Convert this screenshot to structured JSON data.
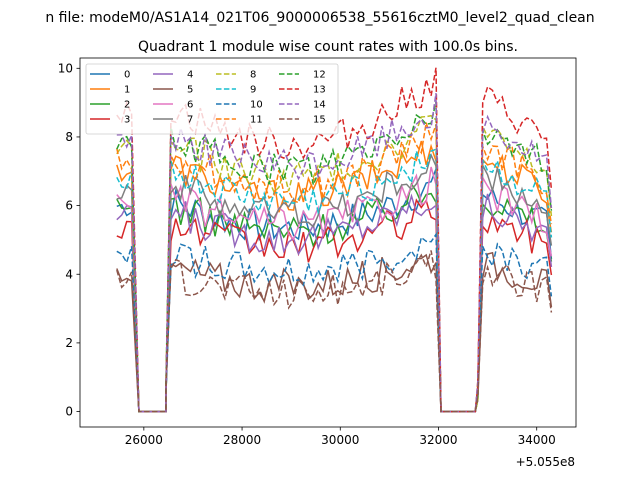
{
  "chart_data": {
    "type": "line",
    "suptitle": "n file: modeM0/AS1A14_021T06_9000006538_55616cztM0_level2_quad_clean",
    "title": "Quadrant 1 module wise count rates with 100.0s bins.",
    "xlabel": "",
    "ylabel": "",
    "x_offset_label": "+5.055e8",
    "xlim": [
      24700,
      34800
    ],
    "ylim": [
      -0.45,
      10.3
    ],
    "x_ticks": [
      26000,
      28000,
      30000,
      32000,
      34000
    ],
    "x_tick_labels": [
      "26000",
      "28000",
      "30000",
      "32000",
      "34000"
    ],
    "y_ticks": [
      0,
      2,
      4,
      6,
      8,
      10
    ],
    "y_tick_labels": [
      "0",
      "2",
      "4",
      "6",
      "8",
      "10"
    ],
    "legend_position": "upper-left",
    "legend_columns": 4,
    "series_levels": [
      {
        "name": "0",
        "color": "#1f77b4",
        "dash": "solid",
        "level": 5.7
      },
      {
        "name": "1",
        "color": "#ff7f0e",
        "dash": "solid",
        "level": 6.7
      },
      {
        "name": "2",
        "color": "#2ca02c",
        "dash": "solid",
        "level": 5.6
      },
      {
        "name": "3",
        "color": "#d62728",
        "dash": "solid",
        "level": 5.1
      },
      {
        "name": "4",
        "color": "#9467bd",
        "dash": "solid",
        "level": 5.4
      },
      {
        "name": "5",
        "color": "#8c564b",
        "dash": "solid",
        "level": 3.9
      },
      {
        "name": "6",
        "color": "#e377c2",
        "dash": "solid",
        "level": 5.8
      },
      {
        "name": "7",
        "color": "#7f7f7f",
        "dash": "solid",
        "level": 6.2
      },
      {
        "name": "8",
        "color": "#bcbd22",
        "dash": "dashed",
        "level": 7.3
      },
      {
        "name": "9",
        "color": "#17becf",
        "dash": "dashed",
        "level": 6.5
      },
      {
        "name": "10",
        "color": "#1f77b4",
        "dash": "dashed",
        "level": 4.3
      },
      {
        "name": "11",
        "color": "#ff7f0e",
        "dash": "dashed",
        "level": 7.0
      },
      {
        "name": "12",
        "color": "#2ca02c",
        "dash": "dashed",
        "level": 7.5
      },
      {
        "name": "13",
        "color": "#d62728",
        "dash": "dashed",
        "level": 8.3
      },
      {
        "name": "14",
        "color": "#9467bd",
        "dash": "dashed",
        "level": 7.6
      },
      {
        "name": "15",
        "color": "#8c564b",
        "dash": "dashed",
        "level": 3.7
      }
    ],
    "segments": [
      {
        "x_start": 25450,
        "x_end": 25800
      },
      {
        "x_start": 26450,
        "x_end": 31950
      },
      {
        "x_start": 32800,
        "x_end": 34350
      }
    ],
    "zero_gaps": [
      {
        "x_start": 25900,
        "x_end": 26450
      },
      {
        "x_start": 32050,
        "x_end": 32750
      }
    ],
    "bin_seconds": 100
  }
}
